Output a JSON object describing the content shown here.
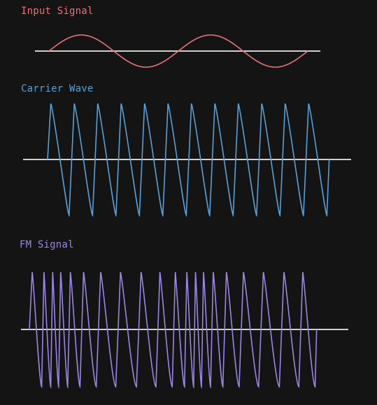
{
  "panels": [
    {
      "key": "input",
      "label": "Input Signal",
      "color": "#e8727a",
      "waveform": "sine",
      "cycles": 2,
      "modulates": "carrier frequency"
    },
    {
      "key": "carrier",
      "label": "Carrier Wave",
      "color": "#5aa0d6",
      "waveform": "sawtooth",
      "cycles": 12
    },
    {
      "key": "fm",
      "label": "FM Signal",
      "color": "#9d86e3",
      "waveform": "sawtooth",
      "cycles": 20
    }
  ],
  "axis_color": "#d0d0d0",
  "background": "#141414"
}
